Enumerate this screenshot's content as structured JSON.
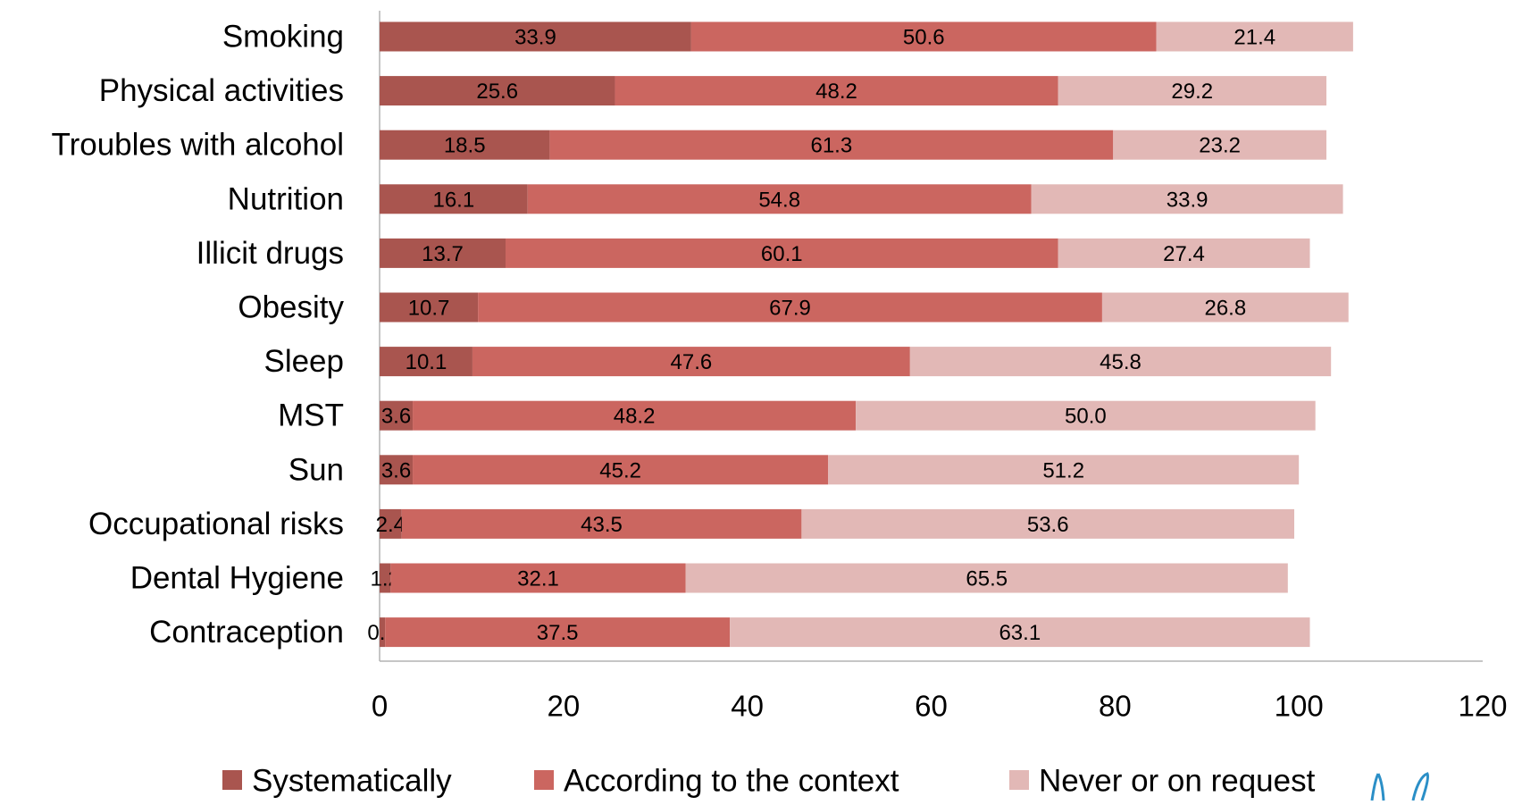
{
  "chart_data": {
    "type": "bar",
    "orientation": "horizontal",
    "stacked": true,
    "categories": [
      "Smoking",
      "Physical activities",
      "Troubles with alcohol",
      "Nutrition",
      "Illicit drugs",
      "Obesity",
      "Sleep",
      "MST",
      "Sun",
      "Occupational risks",
      "Dental Hygiene",
      "Contraception"
    ],
    "series": [
      {
        "name": "Systematically",
        "color": "#a9554f",
        "values": [
          33.9,
          25.6,
          18.5,
          16.1,
          13.7,
          10.7,
          10.1,
          3.6,
          3.6,
          2.4,
          1.2,
          0.6
        ],
        "labels": [
          "33.9",
          "25.6",
          "18.5",
          "16.1",
          "13.7",
          "10.7",
          "10.1",
          "3.6",
          "3.6",
          "2.4",
          "1.2",
          "0.6"
        ]
      },
      {
        "name": "According to the context",
        "color": "#cb6660",
        "values": [
          50.6,
          48.2,
          61.3,
          54.8,
          60.1,
          67.9,
          47.6,
          48.2,
          45.2,
          43.5,
          32.1,
          37.5
        ],
        "labels": [
          "50.6",
          "48.2",
          "61.3",
          "54.8",
          "60.1",
          "67.9",
          "47.6",
          "48.2",
          "45.2",
          "43.5",
          "32.1",
          "37.5"
        ]
      },
      {
        "name": "Never or on request",
        "color": "#e2b8b6",
        "values": [
          21.4,
          29.2,
          23.2,
          33.9,
          27.4,
          26.8,
          45.8,
          50.0,
          51.2,
          53.6,
          65.5,
          63.1
        ],
        "labels": [
          "21.4",
          "29.2",
          "23.2",
          "33.9",
          "27.4",
          "26.8",
          "45.8",
          "50.0",
          "51.2",
          "53.6",
          "65.5",
          "63.1"
        ]
      }
    ],
    "xlim": [
      0,
      120
    ],
    "xticks": [
      0,
      20,
      40,
      60,
      80,
      100,
      120
    ],
    "xtick_labels": [
      "0",
      "20",
      "40",
      "60",
      "80",
      "100",
      "120"
    ],
    "grid": false,
    "legend_position": "bottom",
    "title": "",
    "xlabel": "",
    "ylabel": ""
  }
}
